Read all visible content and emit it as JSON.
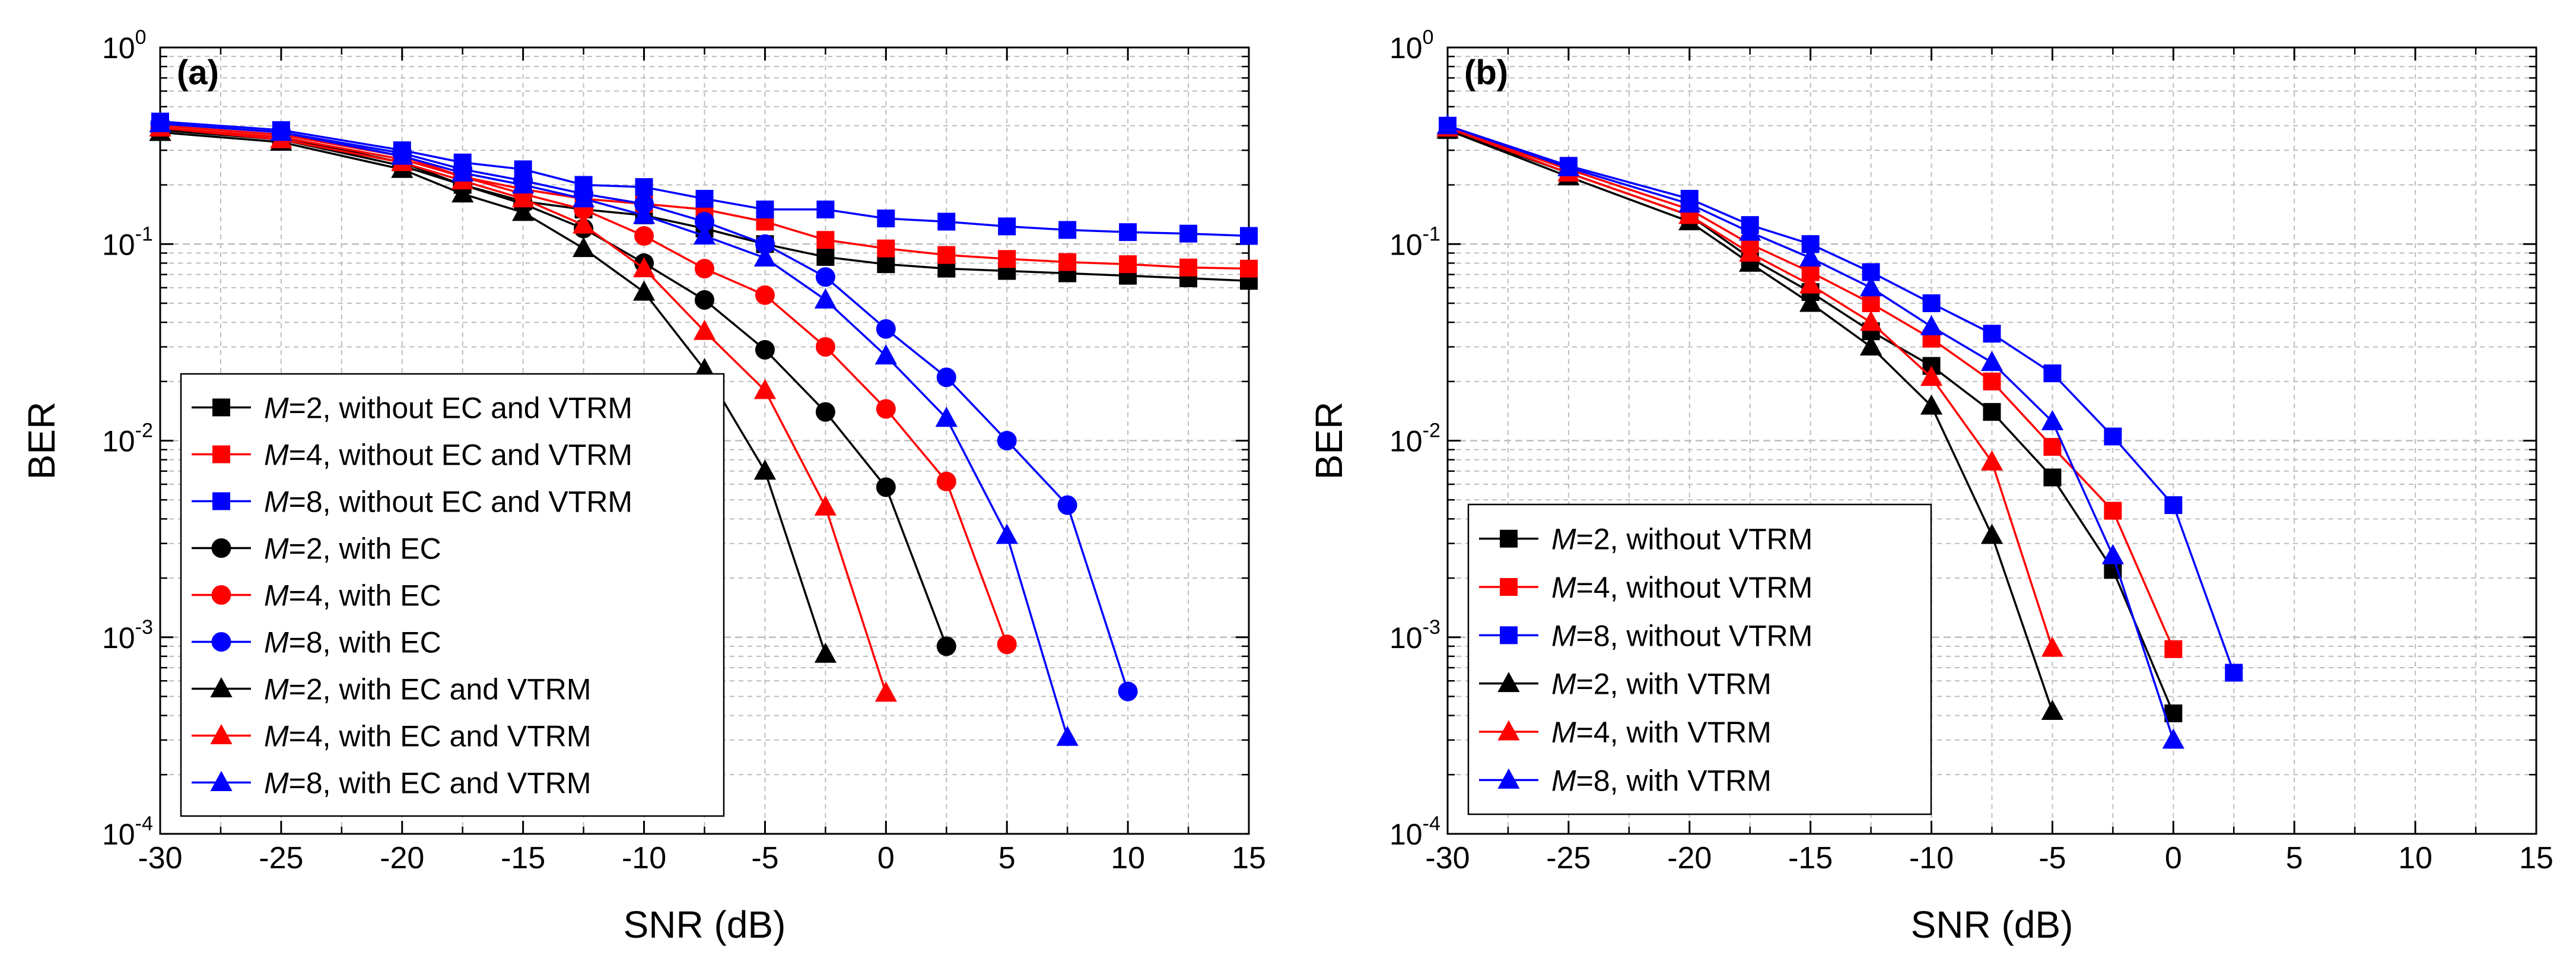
{
  "chart_data": [
    {
      "type": "line",
      "panel_label": "(a)",
      "xlabel": "SNR (dB)",
      "ylabel": "BER",
      "xscale": "linear",
      "yscale": "log",
      "xlim": [
        -30,
        15
      ],
      "ylim": [
        0.0001,
        1
      ],
      "xticks": [
        "-30",
        "-25",
        "-20",
        "-15",
        "-10",
        "-5",
        "0",
        "5",
        "10",
        "15"
      ],
      "ytick_bases": [
        "10",
        "10",
        "10",
        "10",
        "10"
      ],
      "ytick_exponents": [
        "0",
        "-1",
        "-2",
        "-3",
        "-4"
      ],
      "grid": true,
      "legend_position": "bottom-left",
      "series": [
        {
          "name": "M=2, without EC and VTRM",
          "legend_m": "M",
          "legend_rest": "=2, without EC and VTRM",
          "color": "#000000",
          "marker": "square",
          "x": [
            -30,
            -25,
            -20,
            -17.5,
            -15,
            -12.5,
            -10,
            -7.5,
            -5,
            -2.5,
            0,
            2.5,
            5,
            7.5,
            10,
            12.5,
            15
          ],
          "y": [
            0.39,
            0.35,
            0.26,
            0.2,
            0.165,
            0.15,
            0.14,
            0.12,
            0.1,
            0.086,
            0.079,
            0.075,
            0.073,
            0.071,
            0.069,
            0.067,
            0.065
          ]
        },
        {
          "name": "M=4, without EC and VTRM",
          "legend_m": "M",
          "legend_rest": "=4, without EC and VTRM",
          "color": "#ff0000",
          "marker": "square",
          "x": [
            -30,
            -25,
            -20,
            -17.5,
            -15,
            -12.5,
            -10,
            -7.5,
            -5,
            -2.5,
            0,
            2.5,
            5,
            7.5,
            10,
            12.5,
            15
          ],
          "y": [
            0.4,
            0.36,
            0.28,
            0.22,
            0.19,
            0.17,
            0.16,
            0.15,
            0.13,
            0.105,
            0.095,
            0.088,
            0.084,
            0.081,
            0.079,
            0.076,
            0.075
          ]
        },
        {
          "name": "M=8, without EC and VTRM",
          "legend_m": "M",
          "legend_rest": "=8, without EC and VTRM",
          "color": "#0000ff",
          "marker": "square",
          "x": [
            -30,
            -25,
            -20,
            -17.5,
            -15,
            -12.5,
            -10,
            -7.5,
            -5,
            -2.5,
            0,
            2.5,
            5,
            7.5,
            10,
            12.5,
            15
          ],
          "y": [
            0.42,
            0.38,
            0.3,
            0.26,
            0.24,
            0.2,
            0.195,
            0.17,
            0.15,
            0.15,
            0.135,
            0.13,
            0.123,
            0.118,
            0.115,
            0.113,
            0.11
          ]
        },
        {
          "name": "M=2, with EC",
          "legend_m": "M",
          "legend_rest": "=2, with EC",
          "color": "#000000",
          "marker": "circle",
          "x": [
            -30,
            -25,
            -20,
            -17.5,
            -15,
            -12.5,
            -10,
            -7.5,
            -5,
            -2.5,
            0,
            2.5
          ],
          "y": [
            0.38,
            0.34,
            0.25,
            0.2,
            0.16,
            0.12,
            0.08,
            0.052,
            0.029,
            0.014,
            0.0058,
            0.0009
          ]
        },
        {
          "name": "M=4, with EC",
          "legend_m": "M",
          "legend_rest": "=4, with EC",
          "color": "#ff0000",
          "marker": "circle",
          "x": [
            -30,
            -25,
            -20,
            -17.5,
            -15,
            -12.5,
            -10,
            -7.5,
            -5,
            -2.5,
            0,
            2.5,
            5
          ],
          "y": [
            0.39,
            0.35,
            0.27,
            0.22,
            0.18,
            0.15,
            0.11,
            0.075,
            0.055,
            0.03,
            0.0145,
            0.0062,
            0.00092
          ]
        },
        {
          "name": "M=8, with EC",
          "legend_m": "M",
          "legend_rest": "=8, with EC",
          "color": "#0000ff",
          "marker": "circle",
          "x": [
            -30,
            -25,
            -20,
            -17.5,
            -15,
            -12.5,
            -10,
            -7.5,
            -5,
            -2.5,
            0,
            2.5,
            5,
            7.5,
            10
          ],
          "y": [
            0.41,
            0.37,
            0.29,
            0.24,
            0.21,
            0.18,
            0.16,
            0.13,
            0.1,
            0.068,
            0.037,
            0.021,
            0.01,
            0.0047,
            0.00053
          ]
        },
        {
          "name": "M=2, with EC and VTRM",
          "legend_m": "M",
          "legend_rest": "=2, with EC and VTRM",
          "color": "#000000",
          "marker": "triangle",
          "x": [
            -30,
            -25,
            -20,
            -17.5,
            -15,
            -12.5,
            -10,
            -7.5,
            -5,
            -2.5
          ],
          "y": [
            0.37,
            0.33,
            0.24,
            0.18,
            0.145,
            0.095,
            0.057,
            0.023,
            0.007,
            0.00082
          ]
        },
        {
          "name": "M=4, with EC and VTRM",
          "legend_m": "M",
          "legend_rest": "=4, with EC and VTRM",
          "color": "#ff0000",
          "marker": "triangle",
          "x": [
            -30,
            -25,
            -20,
            -17.5,
            -15,
            -12.5,
            -10,
            -7.5,
            -5,
            -2.5,
            0
          ],
          "y": [
            0.39,
            0.34,
            0.26,
            0.21,
            0.17,
            0.125,
            0.075,
            0.036,
            0.018,
            0.0046,
            0.00052
          ]
        },
        {
          "name": "M=8, with EC and VTRM",
          "legend_m": "M",
          "legend_rest": "=8, with EC and VTRM",
          "color": "#0000ff",
          "marker": "triangle",
          "x": [
            -30,
            -25,
            -20,
            -17.5,
            -15,
            -12.5,
            -10,
            -7.5,
            -5,
            -2.5,
            0,
            2.5,
            5,
            7.5
          ],
          "y": [
            0.41,
            0.37,
            0.28,
            0.23,
            0.2,
            0.17,
            0.14,
            0.11,
            0.085,
            0.052,
            0.027,
            0.013,
            0.0033,
            0.00031
          ]
        }
      ]
    },
    {
      "type": "line",
      "panel_label": "(b)",
      "xlabel": "SNR (dB)",
      "ylabel": "BER",
      "xscale": "linear",
      "yscale": "log",
      "xlim": [
        -30,
        15
      ],
      "ylim": [
        0.0001,
        1
      ],
      "xticks": [
        "-30",
        "-25",
        "-20",
        "-15",
        "-10",
        "-5",
        "0",
        "5",
        "10",
        "15"
      ],
      "ytick_bases": [
        "10",
        "10",
        "10",
        "10",
        "10"
      ],
      "ytick_exponents": [
        "0",
        "-1",
        "-2",
        "-3",
        "-4"
      ],
      "grid": true,
      "legend_position": "bottom-left",
      "series": [
        {
          "name": "M=2, without VTRM",
          "legend_m": "M",
          "legend_rest": "=2, without VTRM",
          "color": "#000000",
          "marker": "square",
          "x": [
            -30,
            -25,
            -20,
            -17.5,
            -15,
            -12.5,
            -10,
            -7.5,
            -5,
            -2.5,
            0
          ],
          "y": [
            0.38,
            0.23,
            0.14,
            0.085,
            0.057,
            0.036,
            0.024,
            0.014,
            0.0065,
            0.0022,
            0.00041
          ]
        },
        {
          "name": "M=4, without VTRM",
          "legend_m": "M",
          "legend_rest": "=4, without VTRM",
          "color": "#ff0000",
          "marker": "square",
          "x": [
            -30,
            -25,
            -20,
            -17.5,
            -15,
            -12.5,
            -10,
            -7.5,
            -5,
            -2.5,
            0
          ],
          "y": [
            0.39,
            0.24,
            0.15,
            0.1,
            0.072,
            0.05,
            0.033,
            0.02,
            0.0093,
            0.0044,
            0.00087
          ]
        },
        {
          "name": "M=8, without VTRM",
          "legend_m": "M",
          "legend_rest": "=8, without VTRM",
          "color": "#0000ff",
          "marker": "square",
          "x": [
            -30,
            -25,
            -20,
            -17.5,
            -15,
            -12.5,
            -10,
            -7.5,
            -5,
            -2.5,
            0,
            2.5
          ],
          "y": [
            0.4,
            0.25,
            0.17,
            0.125,
            0.1,
            0.072,
            0.05,
            0.035,
            0.022,
            0.0105,
            0.0047,
            0.00066
          ]
        },
        {
          "name": "M=2, with VTRM",
          "legend_m": "M",
          "legend_rest": "=2, with VTRM",
          "color": "#000000",
          "marker": "triangle",
          "x": [
            -30,
            -25,
            -20,
            -17.5,
            -15,
            -12.5,
            -10,
            -7.5,
            -5
          ],
          "y": [
            0.38,
            0.22,
            0.13,
            0.08,
            0.05,
            0.03,
            0.015,
            0.0033,
            0.00042
          ]
        },
        {
          "name": "M=4, with VTRM",
          "legend_m": "M",
          "legend_rest": "=4, with VTRM",
          "color": "#ff0000",
          "marker": "triangle",
          "x": [
            -30,
            -25,
            -20,
            -17.5,
            -15,
            -12.5,
            -10,
            -7.5,
            -5
          ],
          "y": [
            0.39,
            0.23,
            0.14,
            0.09,
            0.062,
            0.04,
            0.021,
            0.0078,
            0.00088
          ]
        },
        {
          "name": "M=8, with VTRM",
          "legend_m": "M",
          "legend_rest": "=8, with VTRM",
          "color": "#0000ff",
          "marker": "triangle",
          "x": [
            -30,
            -25,
            -20,
            -17.5,
            -15,
            -12.5,
            -10,
            -7.5,
            -5,
            -2.5,
            0
          ],
          "y": [
            0.4,
            0.245,
            0.16,
            0.115,
            0.085,
            0.06,
            0.038,
            0.025,
            0.0125,
            0.0026,
            0.0003
          ]
        }
      ]
    }
  ]
}
